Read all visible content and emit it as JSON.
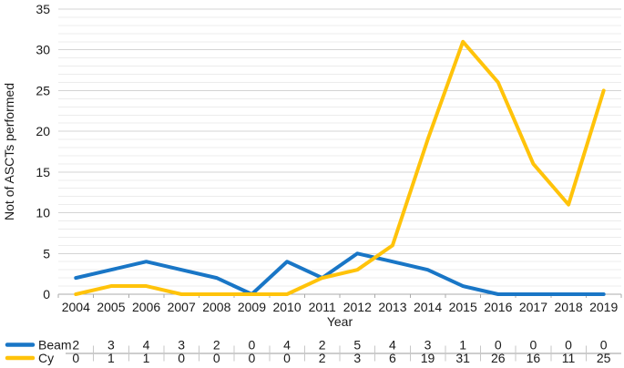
{
  "chart_data": {
    "type": "line",
    "title": "",
    "xlabel": "Year",
    "ylabel": "Not of ASCTs performed",
    "x": [
      "2004",
      "2005",
      "2006",
      "2007",
      "2008",
      "2009",
      "2010",
      "2011",
      "2012",
      "2013",
      "2014",
      "2015",
      "2016",
      "2017",
      "2018",
      "2019"
    ],
    "ylim": [
      0,
      35
    ],
    "y_major_step": 5,
    "y_minor_step": 1,
    "y_tick_labels": [
      "0",
      "5",
      "10",
      "15",
      "20",
      "25",
      "30",
      "35"
    ],
    "grid": "horizontal major+minor",
    "legend_position": "bottom data table",
    "has_data_table": true,
    "series": [
      {
        "name": "Beam",
        "color": "#1976C6",
        "values": [
          2,
          3,
          4,
          3,
          2,
          0,
          4,
          2,
          5,
          4,
          3,
          1,
          0,
          0,
          0,
          0
        ]
      },
      {
        "name": "Cy",
        "color": "#FFC30A",
        "values": [
          0,
          1,
          1,
          0,
          0,
          0,
          0,
          2,
          3,
          6,
          19,
          31,
          26,
          16,
          11,
          25
        ]
      }
    ]
  },
  "colors": {
    "major_grid": "#d4d4d4",
    "minor_grid": "#ececec",
    "axis_line": "#ababab",
    "tick_mark": "#ababab",
    "table_divider": "#9b9b9b",
    "table_separator": "#c7c7c7",
    "text": "#1a1a1a"
  }
}
